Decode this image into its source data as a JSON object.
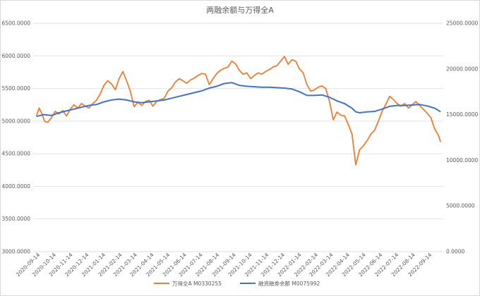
{
  "chart_data": {
    "type": "line",
    "title": "两融余额与万得全A",
    "left_axis": {
      "min": 3000,
      "max": 6500,
      "ticks": [
        "3000.0000",
        "3500.0000",
        "4000.0000",
        "4500.0000",
        "5000.0000",
        "5500.0000",
        "6000.0000",
        "6500.0000"
      ],
      "tick_values": [
        3000,
        3500,
        4000,
        4500,
        5000,
        5500,
        6000,
        6500
      ]
    },
    "right_axis": {
      "min": 0,
      "max": 25000,
      "ticks": [
        "0.0000",
        "5000.0000",
        "10000.0000",
        "15000.0000",
        "20000.0000",
        "25000.0000"
      ],
      "tick_values": [
        0,
        5000,
        10000,
        15000,
        20000,
        25000
      ]
    },
    "x_range": [
      "2020-09-01",
      "2022-10-05"
    ],
    "x_ticks": [
      "2020-09-14",
      "2020-10-14",
      "2020-11-14",
      "2020-12-14",
      "2021-01-14",
      "2021-02-14",
      "2021-03-14",
      "2021-04-14",
      "2021-05-14",
      "2021-06-14",
      "2021-07-14",
      "2021-08-14",
      "2021-09-14",
      "2021-10-14",
      "2021-11-14",
      "2021-12-14",
      "2022-01-14",
      "2022-02-14",
      "2022-03-14",
      "2022-04-14",
      "2022-05-14",
      "2022-06-14",
      "2022-07-14",
      "2022-08-14",
      "2022-09-14"
    ],
    "grid": true,
    "legend_position": "bottom",
    "series": [
      {
        "name": "万得全A M0330255",
        "axis": "left",
        "color": "#ed7d31",
        "points": [
          [
            "2020-09-07",
            5080
          ],
          [
            "2020-09-12",
            5200
          ],
          [
            "2020-09-17",
            5120
          ],
          [
            "2020-09-22",
            5000
          ],
          [
            "2020-09-28",
            4980
          ],
          [
            "2020-10-05",
            5050
          ],
          [
            "2020-10-12",
            5150
          ],
          [
            "2020-10-19",
            5110
          ],
          [
            "2020-10-26",
            5160
          ],
          [
            "2020-11-02",
            5080
          ],
          [
            "2020-11-09",
            5180
          ],
          [
            "2020-11-16",
            5250
          ],
          [
            "2020-11-23",
            5200
          ],
          [
            "2020-11-30",
            5270
          ],
          [
            "2020-12-07",
            5230
          ],
          [
            "2020-12-14",
            5200
          ],
          [
            "2020-12-21",
            5270
          ],
          [
            "2020-12-28",
            5320
          ],
          [
            "2021-01-04",
            5420
          ],
          [
            "2021-01-11",
            5550
          ],
          [
            "2021-01-18",
            5620
          ],
          [
            "2021-01-25",
            5570
          ],
          [
            "2021-02-01",
            5480
          ],
          [
            "2021-02-08",
            5650
          ],
          [
            "2021-02-15",
            5760
          ],
          [
            "2021-02-22",
            5620
          ],
          [
            "2021-03-01",
            5460
          ],
          [
            "2021-03-08",
            5220
          ],
          [
            "2021-03-15",
            5290
          ],
          [
            "2021-03-22",
            5240
          ],
          [
            "2021-03-29",
            5300
          ],
          [
            "2021-04-05",
            5320
          ],
          [
            "2021-04-12",
            5230
          ],
          [
            "2021-04-19",
            5300
          ],
          [
            "2021-04-26",
            5330
          ],
          [
            "2021-05-03",
            5350
          ],
          [
            "2021-05-10",
            5460
          ],
          [
            "2021-05-17",
            5510
          ],
          [
            "2021-05-24",
            5600
          ],
          [
            "2021-05-31",
            5650
          ],
          [
            "2021-06-07",
            5620
          ],
          [
            "2021-06-14",
            5580
          ],
          [
            "2021-06-21",
            5630
          ],
          [
            "2021-06-28",
            5660
          ],
          [
            "2021-07-05",
            5700
          ],
          [
            "2021-07-12",
            5730
          ],
          [
            "2021-07-19",
            5720
          ],
          [
            "2021-07-26",
            5560
          ],
          [
            "2021-08-02",
            5650
          ],
          [
            "2021-08-09",
            5730
          ],
          [
            "2021-08-16",
            5780
          ],
          [
            "2021-08-23",
            5810
          ],
          [
            "2021-08-30",
            5830
          ],
          [
            "2021-09-06",
            5920
          ],
          [
            "2021-09-13",
            5880
          ],
          [
            "2021-09-20",
            5780
          ],
          [
            "2021-09-27",
            5720
          ],
          [
            "2021-10-04",
            5740
          ],
          [
            "2021-10-11",
            5650
          ],
          [
            "2021-10-18",
            5700
          ],
          [
            "2021-10-25",
            5740
          ],
          [
            "2021-11-01",
            5720
          ],
          [
            "2021-11-08",
            5760
          ],
          [
            "2021-11-15",
            5790
          ],
          [
            "2021-11-22",
            5830
          ],
          [
            "2021-11-29",
            5850
          ],
          [
            "2021-12-06",
            5920
          ],
          [
            "2021-12-13",
            5990
          ],
          [
            "2021-12-20",
            5870
          ],
          [
            "2021-12-27",
            5940
          ],
          [
            "2022-01-03",
            5920
          ],
          [
            "2022-01-10",
            5800
          ],
          [
            "2022-01-17",
            5740
          ],
          [
            "2022-01-24",
            5560
          ],
          [
            "2022-01-31",
            5460
          ],
          [
            "2022-02-07",
            5480
          ],
          [
            "2022-02-14",
            5520
          ],
          [
            "2022-02-21",
            5540
          ],
          [
            "2022-02-28",
            5500
          ],
          [
            "2022-03-07",
            5300
          ],
          [
            "2022-03-14",
            5020
          ],
          [
            "2022-03-21",
            5140
          ],
          [
            "2022-03-28",
            5090
          ],
          [
            "2022-04-04",
            5080
          ],
          [
            "2022-04-11",
            4950
          ],
          [
            "2022-04-18",
            4800
          ],
          [
            "2022-04-25",
            4330
          ],
          [
            "2022-05-02",
            4560
          ],
          [
            "2022-05-09",
            4620
          ],
          [
            "2022-05-16",
            4700
          ],
          [
            "2022-05-23",
            4800
          ],
          [
            "2022-05-30",
            4860
          ],
          [
            "2022-06-06",
            5000
          ],
          [
            "2022-06-13",
            5150
          ],
          [
            "2022-06-20",
            5260
          ],
          [
            "2022-06-27",
            5380
          ],
          [
            "2022-07-04",
            5330
          ],
          [
            "2022-07-11",
            5270
          ],
          [
            "2022-07-18",
            5230
          ],
          [
            "2022-07-25",
            5270
          ],
          [
            "2022-08-01",
            5200
          ],
          [
            "2022-08-08",
            5250
          ],
          [
            "2022-08-15",
            5300
          ],
          [
            "2022-08-22",
            5240
          ],
          [
            "2022-08-29",
            5180
          ],
          [
            "2022-09-05",
            5120
          ],
          [
            "2022-09-12",
            5050
          ],
          [
            "2022-09-19",
            4880
          ],
          [
            "2022-09-26",
            4780
          ],
          [
            "2022-09-30",
            4680
          ]
        ]
      },
      {
        "name": "融资融券余额 M0075992",
        "axis": "right",
        "color": "#4472c4",
        "points": [
          [
            "2020-09-07",
            14800
          ],
          [
            "2020-09-21",
            15000
          ],
          [
            "2020-10-05",
            14900
          ],
          [
            "2020-10-19",
            15200
          ],
          [
            "2020-11-02",
            15400
          ],
          [
            "2020-11-16",
            15600
          ],
          [
            "2020-11-30",
            15800
          ],
          [
            "2020-12-14",
            16000
          ],
          [
            "2020-12-28",
            16100
          ],
          [
            "2021-01-11",
            16400
          ],
          [
            "2021-01-25",
            16600
          ],
          [
            "2021-02-08",
            16700
          ],
          [
            "2021-02-22",
            16600
          ],
          [
            "2021-03-08",
            16400
          ],
          [
            "2021-03-22",
            16300
          ],
          [
            "2021-04-05",
            16400
          ],
          [
            "2021-04-19",
            16500
          ],
          [
            "2021-05-03",
            16600
          ],
          [
            "2021-05-17",
            16800
          ],
          [
            "2021-05-31",
            17000
          ],
          [
            "2021-06-14",
            17200
          ],
          [
            "2021-06-28",
            17400
          ],
          [
            "2021-07-12",
            17600
          ],
          [
            "2021-07-26",
            17900
          ],
          [
            "2021-08-09",
            18100
          ],
          [
            "2021-08-23",
            18400
          ],
          [
            "2021-09-06",
            18500
          ],
          [
            "2021-09-20",
            18200
          ],
          [
            "2021-10-04",
            18100
          ],
          [
            "2021-10-18",
            18050
          ],
          [
            "2021-11-01",
            18000
          ],
          [
            "2021-11-15",
            18000
          ],
          [
            "2021-11-29",
            17950
          ],
          [
            "2021-12-13",
            17900
          ],
          [
            "2021-12-27",
            17800
          ],
          [
            "2022-01-10",
            17500
          ],
          [
            "2022-01-24",
            17100
          ],
          [
            "2022-02-07",
            17100
          ],
          [
            "2022-02-21",
            17150
          ],
          [
            "2022-03-07",
            16900
          ],
          [
            "2022-03-21",
            16500
          ],
          [
            "2022-04-04",
            16200
          ],
          [
            "2022-04-18",
            15700
          ],
          [
            "2022-04-25",
            15300
          ],
          [
            "2022-05-02",
            15200
          ],
          [
            "2022-05-16",
            15300
          ],
          [
            "2022-05-30",
            15350
          ],
          [
            "2022-06-13",
            15600
          ],
          [
            "2022-06-27",
            15900
          ],
          [
            "2022-07-11",
            16000
          ],
          [
            "2022-07-25",
            16000
          ],
          [
            "2022-08-08",
            16050
          ],
          [
            "2022-08-22",
            16100
          ],
          [
            "2022-09-05",
            15950
          ],
          [
            "2022-09-19",
            15700
          ],
          [
            "2022-09-30",
            15300
          ]
        ]
      }
    ]
  }
}
